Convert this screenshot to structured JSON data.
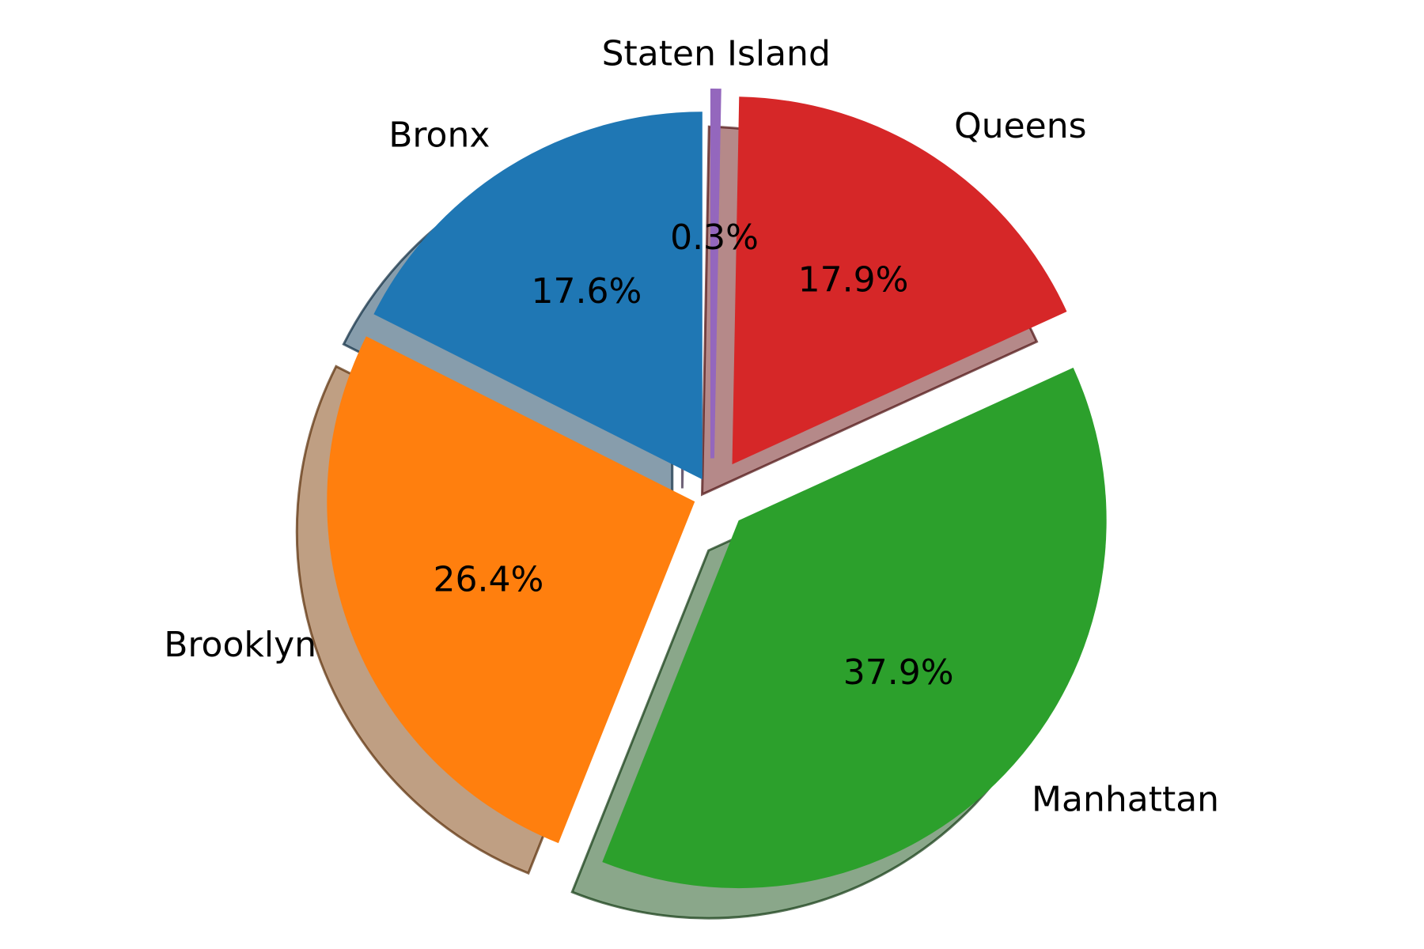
{
  "chart_data": {
    "type": "pie",
    "title": "",
    "start_angle_deg": 90,
    "direction": "counterclockwise",
    "shadow": true,
    "slices": [
      {
        "label": "Bronx",
        "value": 17.6,
        "pct_label": "17.6%",
        "color": "#1f77b4",
        "explode": 0.05
      },
      {
        "label": "Brooklyn",
        "value": 26.4,
        "pct_label": "26.4%",
        "color": "#ff7f0e",
        "explode": 0.05
      },
      {
        "label": "Manhattan",
        "value": 37.9,
        "pct_label": "37.9%",
        "color": "#2ca02c",
        "explode": 0.1
      },
      {
        "label": "Queens",
        "value": 17.9,
        "pct_label": "17.9%",
        "color": "#d62728",
        "explode": 0.1
      },
      {
        "label": "Staten Island",
        "value": 0.3,
        "pct_label": "0.3%",
        "color": "#9467bd",
        "explode": 0.1
      }
    ]
  }
}
